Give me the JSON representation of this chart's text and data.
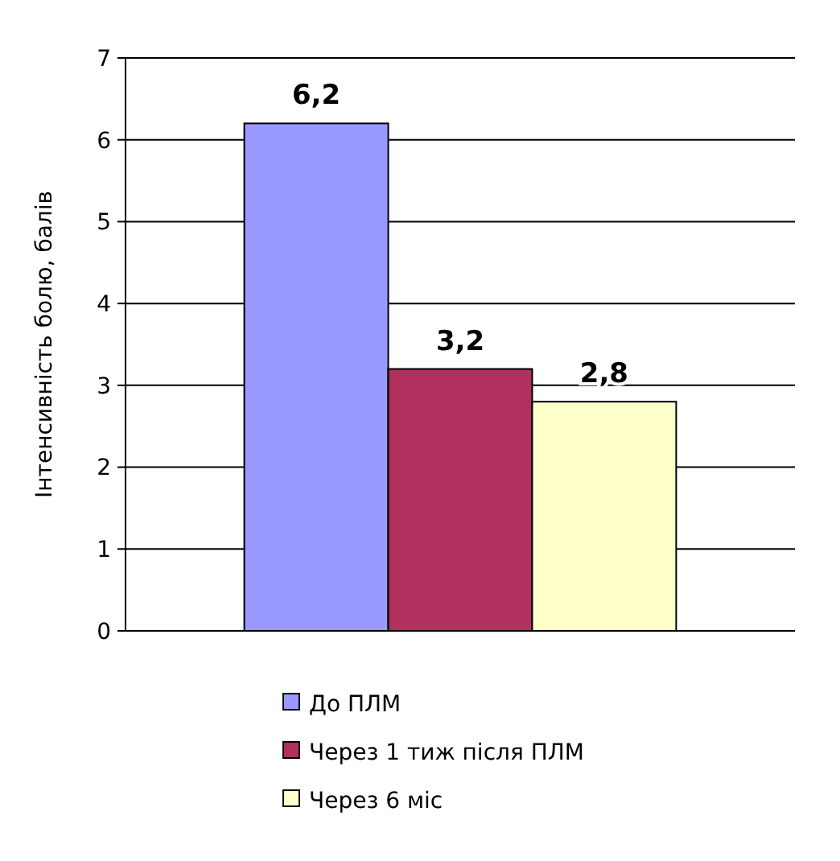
{
  "chart_data": {
    "type": "bar",
    "ylabel": "Інтенсивність болю, балів",
    "categories": [
      null
    ],
    "series": [
      {
        "name": "До ПЛМ",
        "color": "#9999ff",
        "values": [
          6.2
        ],
        "value_labels": [
          "6,2"
        ]
      },
      {
        "name": "Через 1 тиж після ПЛМ",
        "color": "#b03060",
        "values": [
          3.2
        ],
        "value_labels": [
          "3,2"
        ]
      },
      {
        "name": "Через  6 міс",
        "color": "#ffffcc",
        "values": [
          2.8
        ],
        "value_labels": [
          "2,8"
        ]
      }
    ],
    "ylim": [
      0,
      7
    ],
    "yticks": [
      0,
      1,
      2,
      3,
      4,
      5,
      6,
      7
    ],
    "grid": "y",
    "legend": "bottom"
  }
}
